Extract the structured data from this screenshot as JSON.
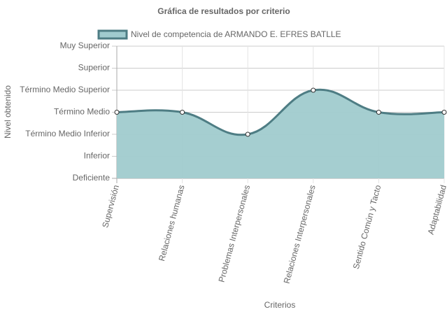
{
  "chart_data": {
    "type": "line",
    "title": "Gráfica de resultados por criterio",
    "x_label": "Criterios",
    "y_label": "Nivel obtenido",
    "categories": [
      "Supervisión",
      "Relaciones humanas",
      "Problemas Interpersonales",
      "Relaciones Interpersonales",
      "Sentido Común y Tacto",
      "Adaptabilidad"
    ],
    "series": [
      {
        "name": "Nivel de competencia de ARMANDO E. EFRES BATLLE",
        "color": "#4e7d84",
        "fill": "#a0cbce",
        "values": [
          3,
          3,
          2,
          4,
          3,
          3
        ]
      }
    ],
    "ylim": [
      0,
      6
    ],
    "yticks": [
      {
        "value": 0,
        "label": "Deficiente"
      },
      {
        "value": 1,
        "label": "Inferior"
      },
      {
        "value": 2,
        "label": "Término Medio Inferior"
      },
      {
        "value": 3,
        "label": "Término Medio"
      },
      {
        "value": 4,
        "label": "Término Medio Superior"
      },
      {
        "value": 5,
        "label": "Superior"
      },
      {
        "value": 6,
        "label": "Muy Superior"
      }
    ],
    "grid": true,
    "legend": "top"
  }
}
